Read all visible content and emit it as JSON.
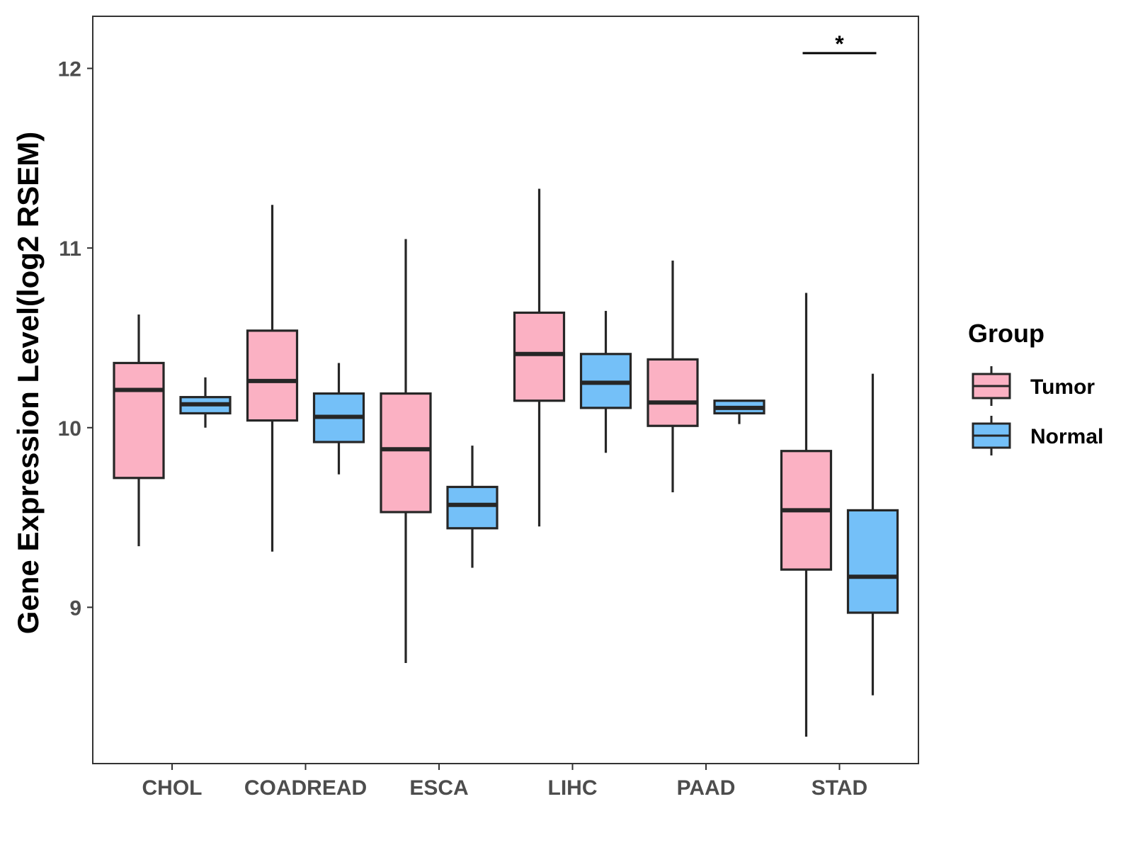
{
  "chart_data": {
    "type": "boxplot",
    "ylabel": "Gene Expression Level(log2 RSEM)",
    "xlabel": "",
    "ylim": [
      8.13,
      12.29
    ],
    "yticks": [
      9,
      10,
      11,
      12
    ],
    "categories": [
      "CHOL",
      "COADREAD",
      "ESCA",
      "LIHC",
      "PAAD",
      "STAD"
    ],
    "legend": {
      "title": "Group",
      "position": "right",
      "entries": [
        {
          "name": "Tumor",
          "color": "#FBB1C3"
        },
        {
          "name": "Normal",
          "color": "#74C0F8"
        }
      ]
    },
    "series": [
      {
        "name": "Tumor",
        "color": "#FBB1C3",
        "boxes": [
          {
            "category": "CHOL",
            "whisker_low": 9.34,
            "q1": 9.72,
            "median": 10.21,
            "q3": 10.36,
            "whisker_high": 10.63
          },
          {
            "category": "COADREAD",
            "whisker_low": 9.31,
            "q1": 10.04,
            "median": 10.26,
            "q3": 10.54,
            "whisker_high": 11.24
          },
          {
            "category": "ESCA",
            "whisker_low": 8.69,
            "q1": 9.53,
            "median": 9.88,
            "q3": 10.19,
            "whisker_high": 11.05
          },
          {
            "category": "LIHC",
            "whisker_low": 9.45,
            "q1": 10.15,
            "median": 10.41,
            "q3": 10.64,
            "whisker_high": 11.33
          },
          {
            "category": "PAAD",
            "whisker_low": 9.64,
            "q1": 10.01,
            "median": 10.14,
            "q3": 10.38,
            "whisker_high": 10.93
          },
          {
            "category": "STAD",
            "whisker_low": 8.28,
            "q1": 9.21,
            "median": 9.54,
            "q3": 9.87,
            "whisker_high": 10.75
          }
        ]
      },
      {
        "name": "Normal",
        "color": "#74C0F8",
        "boxes": [
          {
            "category": "CHOL",
            "whisker_low": 10.0,
            "q1": 10.08,
            "median": 10.13,
            "q3": 10.17,
            "whisker_high": 10.28
          },
          {
            "category": "COADREAD",
            "whisker_low": 9.74,
            "q1": 9.92,
            "median": 10.06,
            "q3": 10.19,
            "whisker_high": 10.36
          },
          {
            "category": "ESCA",
            "whisker_low": 9.22,
            "q1": 9.44,
            "median": 9.57,
            "q3": 9.67,
            "whisker_high": 9.9
          },
          {
            "category": "LIHC",
            "whisker_low": 9.86,
            "q1": 10.11,
            "median": 10.25,
            "q3": 10.41,
            "whisker_high": 10.65
          },
          {
            "category": "PAAD",
            "whisker_low": 10.02,
            "q1": 10.08,
            "median": 10.11,
            "q3": 10.15,
            "whisker_high": 10.15
          },
          {
            "category": "STAD",
            "whisker_low": 8.51,
            "q1": 8.97,
            "median": 9.17,
            "q3": 9.54,
            "whisker_high": 10.3
          }
        ]
      }
    ],
    "annotations": [
      {
        "category": "STAD",
        "text": "*",
        "type": "significance"
      }
    ]
  }
}
